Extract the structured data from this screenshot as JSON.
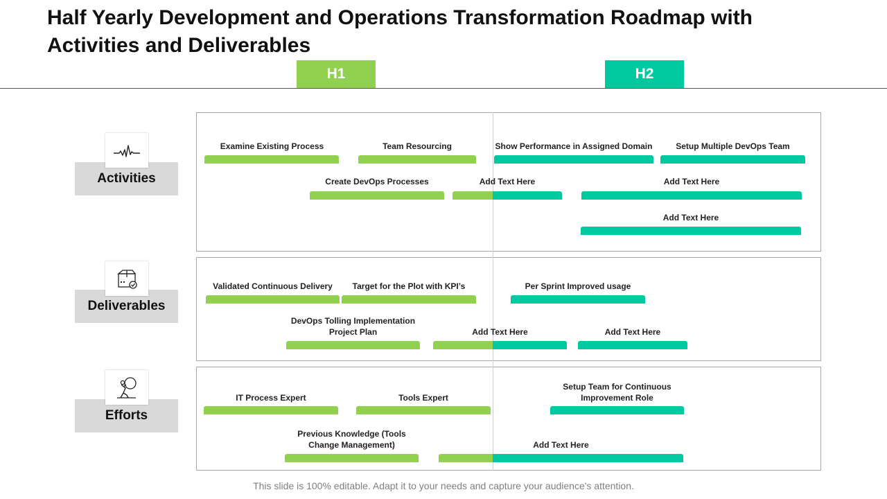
{
  "title": "Half Yearly Development and Operations Transformation Roadmap with Activities and Deliverables",
  "halves": {
    "h1": "H1",
    "h2": "H2"
  },
  "colors": {
    "h1": "#92d050",
    "h2": "#00c9a0",
    "category_bg": "#d9d9d9"
  },
  "categories": [
    {
      "label": "Activities",
      "icon": "heartbeat-icon"
    },
    {
      "label": "Deliverables",
      "icon": "package-check-icon"
    },
    {
      "label": "Efforts",
      "icon": "person-pushing-boulder-icon"
    }
  ],
  "activities": [
    {
      "label": "Examine Existing Process"
    },
    {
      "label": "Team Resourcing"
    },
    {
      "label": "Show Performance in Assigned Domain"
    },
    {
      "label": "Setup Multiple DevOps Team"
    },
    {
      "label": "Create DevOps Processes"
    },
    {
      "label": "Add Text Here"
    },
    {
      "label": "Add Text Here"
    },
    {
      "label": "Add Text Here"
    }
  ],
  "deliverables": [
    {
      "label": "Validated Continuous Delivery"
    },
    {
      "label": "Target for the Plot with KPI’s"
    },
    {
      "label": "Per Sprint Improved usage"
    },
    {
      "label": "DevOps Tolling Implementation Project Plan"
    },
    {
      "label": "Add Text Here"
    },
    {
      "label": "Add Text Here"
    }
  ],
  "efforts": [
    {
      "label": "IT Process Expert"
    },
    {
      "label": "Tools Expert"
    },
    {
      "label": "Setup Team for Continuous Improvement Role"
    },
    {
      "label": "Previous Knowledge (Tools Change Management)"
    },
    {
      "label": "Add Text Here"
    }
  ],
  "footer": "This slide is 100% editable. Adapt it to your needs and capture your audience's attention."
}
